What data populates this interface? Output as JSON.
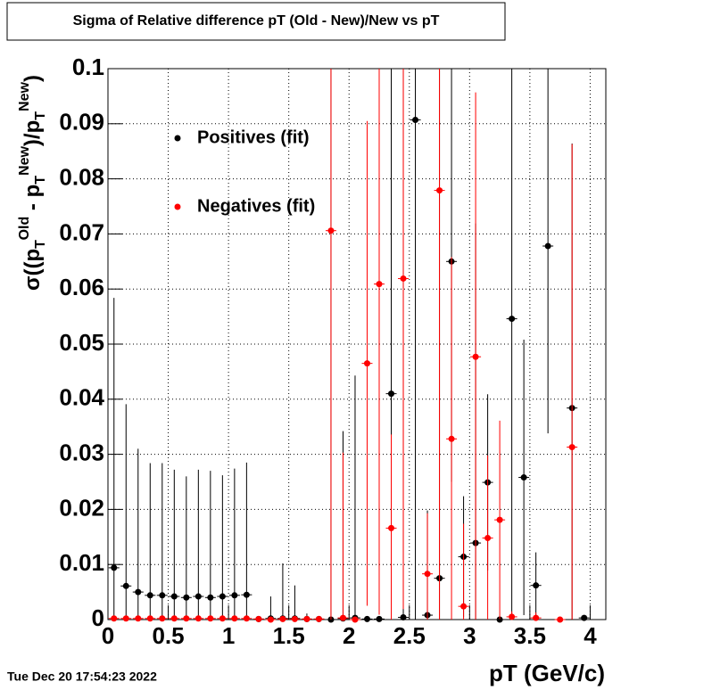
{
  "chart_data": {
    "type": "scatter",
    "title": "Sigma of Relative difference pT (Old - New)/New vs pT",
    "xlabel": "pT (GeV/c)",
    "ylabel_parts": [
      "σ((p",
      "T",
      "Old",
      " - p",
      "T",
      "New",
      ")/p",
      "T",
      "New",
      ")"
    ],
    "timestamp": "Tue Dec 20 17:54:23 2022",
    "x": [
      0.05,
      0.15,
      0.25,
      0.35,
      0.45,
      0.55,
      0.65,
      0.75,
      0.85,
      0.95,
      1.05,
      1.15,
      1.25,
      1.35,
      1.45,
      1.55,
      1.65,
      1.75,
      1.85,
      1.95,
      2.05,
      2.15,
      2.25,
      2.35,
      2.45,
      2.55,
      2.65,
      2.75,
      2.85,
      2.95,
      3.05,
      3.15,
      3.25,
      3.35,
      3.45,
      3.55,
      3.65,
      3.75,
      3.85,
      3.95
    ],
    "series": [
      {
        "name": "Positives (fit)",
        "color": "#000000",
        "values": [
          0.0094,
          0.0061,
          0.005,
          0.0044,
          0.0044,
          0.0042,
          0.004,
          0.0042,
          0.004,
          0.0042,
          0.0044,
          0.0045,
          0.0001,
          0.0002,
          0.0002,
          0.0002,
          0.0001,
          0.0001,
          0,
          0.0002,
          0.0003,
          0.0001,
          0.0001,
          0.041,
          0.0004,
          0.0907,
          0.0008,
          0.0075,
          0.065,
          0.0114,
          0.0139,
          0.0249,
          0,
          0.0546,
          0.0258,
          0.0062,
          0.0678,
          null,
          0.0384,
          0.0003
        ],
        "errors": [
          0.049,
          0.033,
          0.026,
          0.024,
          0.024,
          0.023,
          0.022,
          0.023,
          0.023,
          0.022,
          0.023,
          0.024,
          0,
          0.004,
          0.01,
          0.006,
          0.001,
          0,
          0.1,
          0.034,
          0.044,
          0,
          0,
          0.06,
          0.1,
          0.1,
          0.019,
          0.1,
          0.04,
          0.011,
          0.058,
          0.016,
          0,
          0.055,
          0.025,
          0.006,
          0.034,
          null,
          0.048,
          0
        ]
      },
      {
        "name": "Negatives (fit)",
        "color": "#ff0000",
        "values": [
          0.0002,
          0.0002,
          0.0002,
          0.0002,
          0.0002,
          0.0002,
          0.0002,
          0.0002,
          0.0002,
          0.0002,
          0.0002,
          0.0002,
          0.0001,
          0,
          0.0001,
          0.0001,
          0.0001,
          0.0001,
          0.0706,
          0.0003,
          0,
          0.0465,
          0.0609,
          0.0166,
          0.0619,
          null,
          0.0083,
          0.0779,
          0.0328,
          0.0024,
          0.0477,
          0.0148,
          0.0181,
          0.0005,
          null,
          0.0003,
          null,
          0,
          0.0313,
          null
        ],
        "errors": [
          0,
          0,
          0,
          0,
          0,
          0,
          0,
          0,
          0,
          0,
          0,
          0,
          0,
          0,
          0,
          0,
          0,
          0,
          0.1,
          0.03,
          0,
          0.044,
          0.06,
          0.017,
          0.06,
          null,
          0.011,
          0.1,
          0.033,
          0.015,
          0.048,
          0.015,
          0.018,
          0.001,
          null,
          0.001,
          null,
          0,
          0.055,
          null
        ]
      }
    ],
    "xlim": [
      0,
      4.13
    ],
    "ylim": [
      0,
      0.1
    ],
    "xticks": [
      0,
      0.5,
      1,
      1.5,
      2,
      2.5,
      3,
      3.5,
      4
    ],
    "yticks": [
      0,
      0.01,
      0.02,
      0.03,
      0.04,
      0.05,
      0.06,
      0.07,
      0.08,
      0.09,
      0.1
    ],
    "grid": true
  }
}
